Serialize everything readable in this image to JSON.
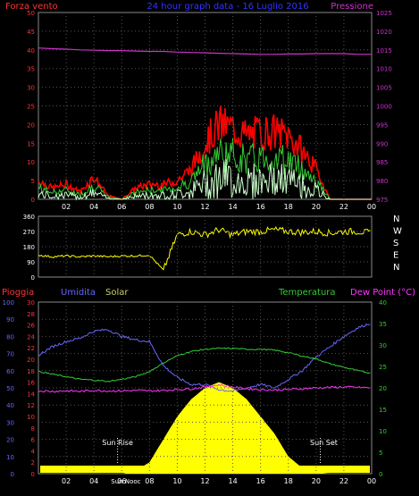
{
  "header": {
    "left_title": "Forza vento",
    "center_title": "24 hour graph data - 16 Luglio 2016",
    "right_title": "Pressione"
  },
  "wind_panel": {
    "y_left_ticks": [
      "0",
      "5",
      "10",
      "15",
      "20",
      "25",
      "30",
      "35",
      "40",
      "45",
      "50"
    ],
    "y_right_ticks": [
      "975",
      "980",
      "985",
      "990",
      "995",
      "1000",
      "1005",
      "1010",
      "1015",
      "1020",
      "1025"
    ],
    "x_ticks": [
      "02",
      "04",
      "06",
      "08",
      "10",
      "12",
      "14",
      "16",
      "18",
      "20",
      "22",
      "00"
    ],
    "pressure_color": "#cc33cc",
    "gust_color": "#ff0000",
    "speed_color": "#33cc33",
    "min_color": "#ccffcc"
  },
  "direction_panel": {
    "y_ticks": [
      "0",
      "90",
      "180",
      "270",
      "360"
    ],
    "compass_labels": [
      "N",
      "W",
      "S",
      "E",
      "N"
    ],
    "line_color": "#ffff00"
  },
  "bottom_panel": {
    "label_rain": "Pioggia",
    "label_humidity": "Umidita",
    "label_solar": "Solar",
    "label_temperature": "Temperatura",
    "label_dewpoint": "Dew Point (°C)",
    "y_humidity_ticks": [
      "0",
      "10",
      "20",
      "30",
      "40",
      "50",
      "60",
      "70",
      "80",
      "90",
      "100"
    ],
    "y_rain_ticks": [
      "0",
      "2",
      "4",
      "6",
      "8",
      "10",
      "12",
      "14",
      "16",
      "18",
      "20",
      "22",
      "24",
      "26",
      "28",
      "30"
    ],
    "y_temp_ticks": [
      "0",
      "5",
      "10",
      "15",
      "20",
      "25",
      "30",
      "35",
      "40"
    ],
    "x_ticks": [
      "02",
      "04",
      "06",
      "08",
      "10",
      "12",
      "14",
      "16",
      "18",
      "20",
      "22",
      "00"
    ],
    "sun_rise_label": "Sun Rise",
    "sun_set_label": "Sun Set",
    "sun_noon_label": "Sun Nooc"
  },
  "chart_data": {
    "type": "line",
    "panels": [
      {
        "name": "wind",
        "x_hours": [
          0,
          1,
          2,
          3,
          4,
          5,
          6,
          7,
          8,
          9,
          10,
          11,
          12,
          13,
          14,
          15,
          16,
          17,
          18,
          19,
          20,
          21,
          22,
          23,
          24
        ],
        "series": [
          {
            "name": "Forza vento",
            "values": [
              5,
              3,
              4,
              2,
              6,
              1,
              0,
              3,
              4,
              4,
              5,
              8,
              15,
              20,
              19,
              17,
              18,
              18,
              17,
              13,
              8,
              0,
              0,
              0,
              0
            ]
          },
          {
            "name": "Pressione",
            "values": [
              1015.5,
              1015.3,
              1015.2,
              1015.0,
              1014.9,
              1014.8,
              1014.8,
              1014.7,
              1014.6,
              1014.6,
              1014.4,
              1014.3,
              1014.2,
              1014.1,
              1014.0,
              1013.9,
              1013.8,
              1013.8,
              1013.9,
              1013.9,
              1014.0,
              1014.0,
              1014.0,
              1013.8,
              1013.8
            ]
          }
        ],
        "ylim_left": [
          0,
          50
        ],
        "ylim_right": [
          975,
          1025
        ]
      },
      {
        "name": "direction",
        "x_hours": [
          0,
          1,
          2,
          3,
          4,
          5,
          6,
          7,
          8,
          9,
          10,
          11,
          12,
          13,
          14,
          15,
          16,
          17,
          18,
          19,
          20,
          21,
          22,
          23,
          24
        ],
        "values": [
          130,
          120,
          125,
          120,
          125,
          120,
          125,
          125,
          130,
          40,
          250,
          270,
          250,
          280,
          250,
          270,
          270,
          280,
          270,
          265,
          270,
          260,
          270,
          270,
          260
        ],
        "ylim": [
          0,
          360
        ]
      },
      {
        "name": "thermo",
        "x_hours": [
          0,
          1,
          2,
          3,
          4,
          5,
          6,
          7,
          8,
          9,
          10,
          11,
          12,
          13,
          14,
          15,
          16,
          17,
          18,
          19,
          20,
          21,
          22,
          23,
          24
        ],
        "series": [
          {
            "name": "Umidita",
            "values": [
              69,
              74,
              77,
              79,
              83,
              84,
              80,
              78,
              77,
              63,
              56,
              52,
              52,
              49,
              48,
              50,
              52,
              50,
              55,
              60,
              68,
              74,
              80,
              85,
              88
            ]
          },
          {
            "name": "Temperatura",
            "values": [
              23.8,
              23.2,
              22.6,
              22.0,
              21.8,
              21.5,
              22.0,
              22.6,
              23.8,
              25.8,
              27.5,
              28.5,
              29.0,
              29.2,
              29.2,
              29.0,
              29.0,
              28.8,
              28.2,
              27.4,
              26.8,
              25.6,
              24.8,
              24.0,
              23.4
            ]
          },
          {
            "name": "Dew Point",
            "values": [
              19.3,
              19.2,
              19.3,
              19.2,
              19.4,
              19.3,
              19.3,
              19.4,
              19.3,
              19.4,
              19.6,
              19.8,
              20.2,
              20.7,
              20.2,
              19.8,
              19.6,
              19.5,
              19.6,
              19.8,
              20.0,
              20.1,
              20.2,
              20.1,
              20.0
            ]
          },
          {
            "name": "Solar",
            "values": [
              0,
              0,
              0,
              0,
              0,
              0,
              0,
              0.5,
              2,
              6,
              10,
              13,
              15,
              16,
              15,
              13,
              10,
              7,
              3,
              1,
              0.3,
              0,
              0,
              0,
              0
            ]
          },
          {
            "name": "Pioggia",
            "values": [
              0,
              0,
              0,
              0,
              0,
              0,
              0,
              0,
              0,
              0,
              0,
              0,
              0,
              0,
              0,
              0,
              0,
              0,
              0,
              0,
              0,
              0,
              0,
              0,
              0
            ]
          }
        ],
        "ylim_humidity": [
          0,
          100
        ],
        "ylim_rain": [
          0,
          30
        ],
        "ylim_temp": [
          0,
          40
        ]
      }
    ]
  }
}
